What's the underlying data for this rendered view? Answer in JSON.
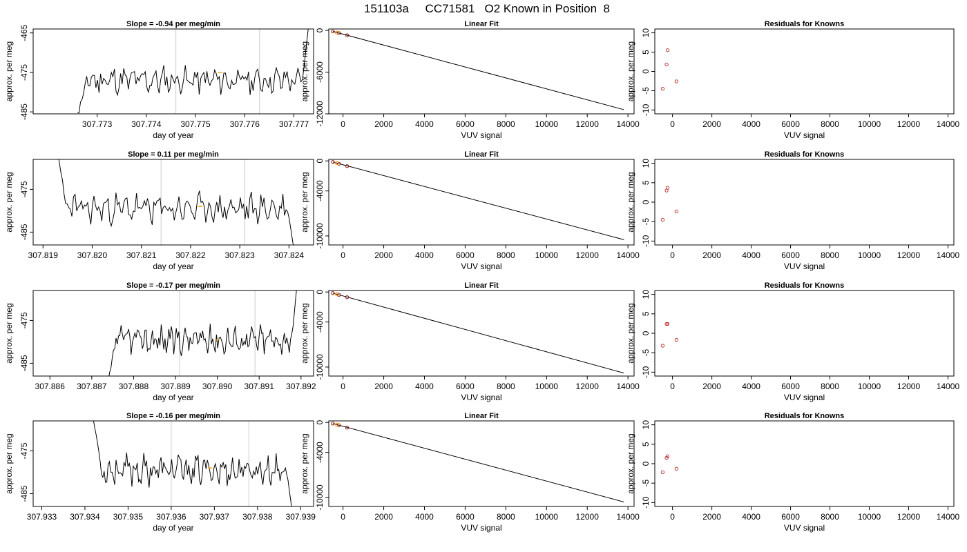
{
  "figure_title": "151103a     CC71581   O2 Known in Position  8",
  "colors": {
    "trace": "#000000",
    "guide": "#d3d3d3",
    "highlight": "#ffa500",
    "fit_point": "#8b0000",
    "residual_point": "#b22222",
    "axis": "#000000"
  },
  "chart_data": [
    {
      "row": 1,
      "timeseries": {
        "type": "line",
        "title": "Slope =  -0.94  per meg/min",
        "xlabel": "day of year",
        "ylabel": "approx. per meg",
        "xlim": [
          307.7717,
          307.7774
        ],
        "ylim": [
          -485.5,
          -464
        ],
        "xticks": [
          "307.773",
          "307.774",
          "307.775",
          "307.776",
          "307.777"
        ],
        "xtick_values": [
          307.773,
          307.774,
          307.775,
          307.776,
          307.777
        ],
        "yticks": [
          "-485",
          "-475",
          "-465"
        ],
        "ytick_values": [
          -485,
          -475,
          -465
        ],
        "start": 307.7726,
        "end": 307.7773,
        "baseline": -477,
        "seed": 11,
        "ramp_in": -486,
        "ramp_out": -463,
        "guides": [
          307.7746,
          307.7763
        ],
        "highlight": {
          "x": 307.7755,
          "y": -475
        }
      },
      "fit": {
        "type": "line",
        "title": "Linear Fit",
        "xlabel": "VUV signal",
        "ylabel": "approx. per meg",
        "xlim": [
          -700,
          14300
        ],
        "ylim": [
          -12000,
          200
        ],
        "xticks": [
          "0",
          "2000",
          "4000",
          "6000",
          "8000",
          "10000",
          "12000",
          "14000"
        ],
        "xtick_values": [
          0,
          2000,
          4000,
          6000,
          8000,
          10000,
          12000,
          14000
        ],
        "yticks": [
          "0",
          "-6000",
          "-12000"
        ],
        "ytick_values": [
          0,
          -6000,
          -12000
        ],
        "line": {
          "x": [
            -500,
            13800
          ],
          "y": [
            -150,
            -11400
          ]
        },
        "points": {
          "x": [
            -500,
            -300,
            -200,
            200
          ],
          "y": [
            -150,
            -330,
            -400,
            -700
          ]
        }
      },
      "residuals": {
        "type": "scatter",
        "title": "Residuals for Knowns",
        "xlabel": "VUV signal",
        "ylabel": "approx. per meg",
        "xlim": [
          -900,
          14300
        ],
        "ylim": [
          -11,
          11
        ],
        "xticks": [
          "0",
          "2000",
          "4000",
          "6000",
          "8000",
          "10000",
          "12000",
          "14000"
        ],
        "xtick_values": [
          0,
          2000,
          4000,
          6000,
          8000,
          10000,
          12000,
          14000
        ],
        "yticks": [
          "-10",
          "-5",
          "0",
          "5",
          "10"
        ],
        "ytick_values": [
          -10,
          -5,
          0,
          5,
          10
        ],
        "points": {
          "x": [
            -500,
            -300,
            -250,
            200
          ],
          "y": [
            -4.5,
            1.8,
            5.5,
            -2.6
          ]
        }
      }
    },
    {
      "row": 2,
      "timeseries": {
        "type": "line",
        "title": "Slope =  0.11  per meg/min",
        "xlabel": "day of year",
        "ylabel": "approx. per meg",
        "xlim": [
          307.8188,
          307.8245
        ],
        "ylim": [
          -488,
          -468
        ],
        "xticks": [
          "307.819",
          "307.820",
          "307.821",
          "307.822",
          "307.823",
          "307.824"
        ],
        "xtick_values": [
          307.819,
          307.82,
          307.821,
          307.822,
          307.823,
          307.824
        ],
        "yticks": [
          "-485",
          "-475"
        ],
        "ytick_values": [
          -485,
          -475
        ],
        "start": 307.8193,
        "end": 307.8241,
        "baseline": -479.5,
        "seed": 23,
        "ramp_in": -467,
        "ramp_out": -489,
        "guides": [
          307.8214,
          307.8231
        ],
        "highlight": {
          "x": 307.8222,
          "y": -479
        }
      },
      "fit": {
        "type": "line",
        "title": "Linear Fit",
        "xlabel": "VUV signal",
        "ylabel": "approx. per meg",
        "xlim": [
          -700,
          14300
        ],
        "ylim": [
          -11200,
          200
        ],
        "xticks": [
          "0",
          "2000",
          "4000",
          "6000",
          "8000",
          "10000",
          "12000",
          "14000"
        ],
        "xtick_values": [
          0,
          2000,
          4000,
          6000,
          8000,
          10000,
          12000,
          14000
        ],
        "yticks": [
          "0",
          "-4000",
          "-10000"
        ],
        "ytick_values": [
          0,
          -4000,
          -10000
        ],
        "line": {
          "x": [
            -500,
            13800
          ],
          "y": [
            -150,
            -10500
          ]
        },
        "points": {
          "x": [
            -500,
            -300,
            -200,
            200
          ],
          "y": [
            -150,
            -300,
            -380,
            -700
          ]
        }
      },
      "residuals": {
        "type": "scatter",
        "title": "Residuals for Knowns",
        "xlabel": "VUV signal",
        "ylabel": "approx. per meg",
        "xlim": [
          -900,
          14300
        ],
        "ylim": [
          -11,
          11
        ],
        "xticks": [
          "0",
          "2000",
          "4000",
          "6000",
          "8000",
          "10000",
          "12000",
          "14000"
        ],
        "xtick_values": [
          0,
          2000,
          4000,
          6000,
          8000,
          10000,
          12000,
          14000
        ],
        "yticks": [
          "-10",
          "-5",
          "0",
          "5",
          "10"
        ],
        "ytick_values": [
          -10,
          -5,
          0,
          5,
          10
        ],
        "points": {
          "x": [
            -500,
            -300,
            -250,
            200
          ],
          "y": [
            -4.5,
            3.0,
            3.7,
            -2.4
          ]
        }
      }
    },
    {
      "row": 3,
      "timeseries": {
        "type": "line",
        "title": "Slope =  -0.17  per meg/min",
        "xlabel": "day of year",
        "ylabel": "approx. per meg",
        "xlim": [
          307.8856,
          307.8923
        ],
        "ylim": [
          -488,
          -468
        ],
        "xticks": [
          "307.886",
          "307.887",
          "307.888",
          "307.889",
          "307.890",
          "307.891",
          "307.892"
        ],
        "xtick_values": [
          307.886,
          307.887,
          307.888,
          307.889,
          307.89,
          307.891,
          307.892
        ],
        "yticks": [
          "-485",
          "-475"
        ],
        "ytick_values": [
          -485,
          -475
        ],
        "start": 307.8874,
        "end": 307.8919,
        "baseline": -479.5,
        "seed": 37,
        "ramp_in": -489,
        "ramp_out": -467,
        "guides": [
          307.8891,
          307.8909
        ],
        "highlight": {
          "x": 307.89,
          "y": -479.5
        }
      },
      "fit": {
        "type": "line",
        "title": "Linear Fit",
        "xlabel": "VUV signal",
        "ylabel": "approx. per meg",
        "xlim": [
          -700,
          14300
        ],
        "ylim": [
          -11200,
          200
        ],
        "xticks": [
          "0",
          "2000",
          "4000",
          "6000",
          "8000",
          "10000",
          "12000",
          "14000"
        ],
        "xtick_values": [
          0,
          2000,
          4000,
          6000,
          8000,
          10000,
          12000,
          14000
        ],
        "yticks": [
          "0",
          "-4000",
          "-10000"
        ],
        "ytick_values": [
          0,
          -4000,
          -10000
        ],
        "line": {
          "x": [
            -500,
            13800
          ],
          "y": [
            -150,
            -10800
          ]
        },
        "points": {
          "x": [
            -500,
            -300,
            -200,
            200
          ],
          "y": [
            -150,
            -300,
            -380,
            -700
          ]
        }
      },
      "residuals": {
        "type": "scatter",
        "title": "Residuals for Knowns",
        "xlabel": "VUV signal",
        "ylabel": "approx. per meg",
        "xlim": [
          -900,
          14300
        ],
        "ylim": [
          -11,
          11
        ],
        "xticks": [
          "0",
          "2000",
          "4000",
          "6000",
          "8000",
          "10000",
          "12000",
          "14000"
        ],
        "xtick_values": [
          0,
          2000,
          4000,
          6000,
          8000,
          10000,
          12000,
          14000
        ],
        "yticks": [
          "-10",
          "-5",
          "0",
          "5",
          "10"
        ],
        "ytick_values": [
          -10,
          -5,
          0,
          5,
          10
        ],
        "points": {
          "x": [
            -500,
            -300,
            -250,
            200
          ],
          "y": [
            -3.2,
            2.4,
            2.4,
            -1.7
          ]
        }
      }
    },
    {
      "row": 4,
      "timeseries": {
        "type": "line",
        "title": "Slope =  -0.16  per meg/min",
        "xlabel": "day of year",
        "ylabel": "approx. per meg",
        "xlim": [
          307.9328,
          307.9393
        ],
        "ylim": [
          -488,
          -468
        ],
        "xticks": [
          "307.933",
          "307.934",
          "307.935",
          "307.936",
          "307.937",
          "307.938",
          "307.939"
        ],
        "xtick_values": [
          307.933,
          307.934,
          307.935,
          307.936,
          307.937,
          307.938,
          307.939
        ],
        "yticks": [
          "-485",
          "-475"
        ],
        "ytick_values": [
          -485,
          -475
        ],
        "start": 307.9342,
        "end": 307.9388,
        "baseline": -479.5,
        "seed": 53,
        "ramp_in": -467,
        "ramp_out": -489,
        "guides": [
          307.936,
          307.9378
        ],
        "highlight": {
          "x": 307.9369,
          "y": -479
        }
      },
      "fit": {
        "type": "line",
        "title": "Linear Fit",
        "xlabel": "VUV signal",
        "ylabel": "approx. per meg",
        "xlim": [
          -700,
          14300
        ],
        "ylim": [
          -11200,
          200
        ],
        "xticks": [
          "0",
          "2000",
          "4000",
          "6000",
          "8000",
          "10000",
          "12000",
          "14000"
        ],
        "xtick_values": [
          0,
          2000,
          4000,
          6000,
          8000,
          10000,
          12000,
          14000
        ],
        "yticks": [
          "0",
          "-4000",
          "-10000"
        ],
        "ytick_values": [
          0,
          -4000,
          -10000
        ],
        "line": {
          "x": [
            -500,
            13800
          ],
          "y": [
            -150,
            -10600
          ]
        },
        "points": {
          "x": [
            -500,
            -300,
            -200,
            200
          ],
          "y": [
            -150,
            -300,
            -380,
            -700
          ]
        }
      },
      "residuals": {
        "type": "scatter",
        "title": "Residuals for Knowns",
        "xlabel": "VUV signal",
        "ylabel": "approx. per meg",
        "xlim": [
          -900,
          14300
        ],
        "ylim": [
          -11,
          11
        ],
        "xticks": [
          "0",
          "2000",
          "4000",
          "6000",
          "8000",
          "10000",
          "12000",
          "14000"
        ],
        "xtick_values": [
          0,
          2000,
          4000,
          6000,
          8000,
          10000,
          12000,
          14000
        ],
        "yticks": [
          "-10",
          "-5",
          "0",
          "5",
          "10"
        ],
        "ytick_values": [
          -10,
          -5,
          0,
          5,
          10
        ],
        "points": {
          "x": [
            -500,
            -300,
            -250,
            200
          ],
          "y": [
            -2.2,
            1.5,
            1.9,
            -1.3
          ]
        }
      }
    }
  ]
}
